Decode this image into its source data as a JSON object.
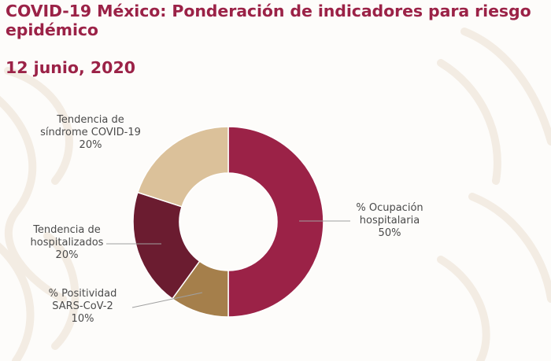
{
  "title": "COVID-19 México: Ponderación de indicadores para riesgo epidémico",
  "date": "12 junio, 2020",
  "colors": {
    "title": "#9b2247",
    "text": "#4a4a4a",
    "leader": "#a0a0a0"
  },
  "chart_data": {
    "type": "pie",
    "donut": true,
    "slices": [
      {
        "name_lines": [
          "% Ocupación",
          "hospitalaria"
        ],
        "percent_label": "50%",
        "value": 50,
        "color": "#9b2247"
      },
      {
        "name_lines": [
          "% Positividad",
          "SARS-CoV-2"
        ],
        "percent_label": "10%",
        "value": 10,
        "color": "#a57f4b"
      },
      {
        "name_lines": [
          "Tendencia de",
          "hospitalizados"
        ],
        "percent_label": "20%",
        "value": 20,
        "color": "#6b1c30"
      },
      {
        "name_lines": [
          "Tendencia de",
          "síndrome COVID-19"
        ],
        "percent_label": "20%",
        "value": 20,
        "color": "#dbc19a"
      }
    ]
  }
}
